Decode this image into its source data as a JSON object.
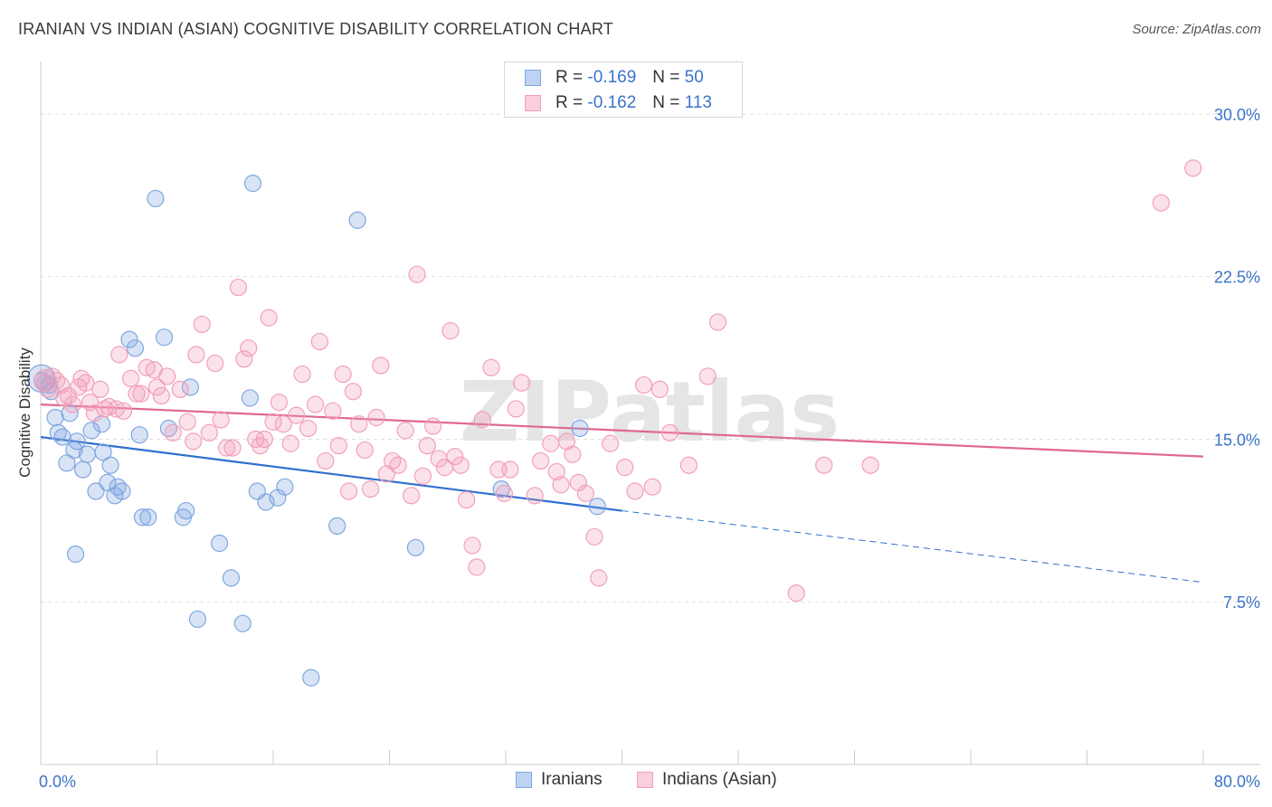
{
  "title": "IRANIAN VS INDIAN (ASIAN) COGNITIVE DISABILITY CORRELATION CHART",
  "source": "Source: ZipAtlas.com",
  "watermark": "ZIPatlas",
  "legend_top": {
    "rows": [
      {
        "r_label": "R =",
        "r_value": "-0.169",
        "n_label": "N =",
        "n_value": "50",
        "color": "#7fa7e0"
      },
      {
        "r_label": "R =",
        "r_value": "-0.162",
        "n_label": "N =",
        "n_value": "113",
        "color": "#f2a0b8"
      }
    ]
  },
  "legend_bottom": [
    {
      "label": "Iranians",
      "color": "#7fa7e0"
    },
    {
      "label": "Indians (Asian)",
      "color": "#f2a0b8"
    }
  ],
  "chart_data": {
    "type": "scatter",
    "title": "IRANIAN VS INDIAN (ASIAN) COGNITIVE DISABILITY CORRELATION CHART",
    "xlabel": "",
    "ylabel": "Cognitive Disability",
    "xlim": [
      0,
      80
    ],
    "ylim": [
      0,
      32
    ],
    "x_tick_labels": [
      "0.0%",
      "80.0%"
    ],
    "y_ticks": [
      7.5,
      15.0,
      22.5,
      30.0
    ],
    "y_tick_labels": [
      "7.5%",
      "15.0%",
      "22.5%",
      "30.0%"
    ],
    "grid": true,
    "legend_position": "top-center",
    "series": [
      {
        "name": "Iranians",
        "color": "#7fa7e0",
        "line_color": "#2e6fce",
        "trend": {
          "x0": 0,
          "y0": 15.1,
          "x1": 40,
          "y1": 11.7,
          "dash_to_x": 80,
          "dash_to_y": 8.4
        },
        "points": [
          [
            0.1,
            17.7
          ],
          [
            0.6,
            17.5
          ],
          [
            0.7,
            17.2
          ],
          [
            1.0,
            16.0
          ],
          [
            1.2,
            15.3
          ],
          [
            1.5,
            15.1
          ],
          [
            1.8,
            13.9
          ],
          [
            2.0,
            16.2
          ],
          [
            2.3,
            14.5
          ],
          [
            2.5,
            14.9
          ],
          [
            2.9,
            13.6
          ],
          [
            3.2,
            14.3
          ],
          [
            3.5,
            15.4
          ],
          [
            3.8,
            12.6
          ],
          [
            4.2,
            15.7
          ],
          [
            4.3,
            14.4
          ],
          [
            4.6,
            13.0
          ],
          [
            4.8,
            13.8
          ],
          [
            5.1,
            12.4
          ],
          [
            5.3,
            12.8
          ],
          [
            5.6,
            12.6
          ],
          [
            6.1,
            19.6
          ],
          [
            6.5,
            19.2
          ],
          [
            6.8,
            15.2
          ],
          [
            7.0,
            11.4
          ],
          [
            7.4,
            11.4
          ],
          [
            7.9,
            26.1
          ],
          [
            8.5,
            19.7
          ],
          [
            8.8,
            15.5
          ],
          [
            9.8,
            11.4
          ],
          [
            10.0,
            11.7
          ],
          [
            10.3,
            17.4
          ],
          [
            10.8,
            6.7
          ],
          [
            12.3,
            10.2
          ],
          [
            13.1,
            8.6
          ],
          [
            13.9,
            6.5
          ],
          [
            14.4,
            16.9
          ],
          [
            14.6,
            26.8
          ],
          [
            14.9,
            12.6
          ],
          [
            15.5,
            12.1
          ],
          [
            16.3,
            12.3
          ],
          [
            16.8,
            12.8
          ],
          [
            18.6,
            4.0
          ],
          [
            20.4,
            11.0
          ],
          [
            21.8,
            25.1
          ],
          [
            25.8,
            10.0
          ],
          [
            31.7,
            12.7
          ],
          [
            37.1,
            15.5
          ],
          [
            2.4,
            9.7
          ],
          [
            38.3,
            11.9
          ]
        ]
      },
      {
        "name": "Indians (Asian)",
        "color": "#f2a0b8",
        "line_color": "#e0688f",
        "trend": {
          "x0": 0,
          "y0": 16.6,
          "x1": 80,
          "y1": 14.2
        },
        "points": [
          [
            0.3,
            17.6
          ],
          [
            0.5,
            17.3
          ],
          [
            0.8,
            17.9
          ],
          [
            1.1,
            17.7
          ],
          [
            1.4,
            17.5
          ],
          [
            1.6,
            16.9
          ],
          [
            1.9,
            17.0
          ],
          [
            2.2,
            16.6
          ],
          [
            2.6,
            17.4
          ],
          [
            2.8,
            17.8
          ],
          [
            3.1,
            17.6
          ],
          [
            3.4,
            16.7
          ],
          [
            3.7,
            16.2
          ],
          [
            4.1,
            17.3
          ],
          [
            4.4,
            16.4
          ],
          [
            4.7,
            16.5
          ],
          [
            5.2,
            16.4
          ],
          [
            5.4,
            18.9
          ],
          [
            5.7,
            16.3
          ],
          [
            6.2,
            17.8
          ],
          [
            6.6,
            17.1
          ],
          [
            6.9,
            17.1
          ],
          [
            7.3,
            18.3
          ],
          [
            7.8,
            18.2
          ],
          [
            8.0,
            17.4
          ],
          [
            8.3,
            17.0
          ],
          [
            8.7,
            17.9
          ],
          [
            9.1,
            15.3
          ],
          [
            9.6,
            17.3
          ],
          [
            10.1,
            15.8
          ],
          [
            10.5,
            14.9
          ],
          [
            10.7,
            18.9
          ],
          [
            11.1,
            20.3
          ],
          [
            11.6,
            15.3
          ],
          [
            12.0,
            18.5
          ],
          [
            12.4,
            15.9
          ],
          [
            12.8,
            14.6
          ],
          [
            13.2,
            14.6
          ],
          [
            13.6,
            22.0
          ],
          [
            14.0,
            18.7
          ],
          [
            14.3,
            19.2
          ],
          [
            14.8,
            15.0
          ],
          [
            15.1,
            14.7
          ],
          [
            15.4,
            15.0
          ],
          [
            15.7,
            20.6
          ],
          [
            16.0,
            15.8
          ],
          [
            16.4,
            16.7
          ],
          [
            16.7,
            15.7
          ],
          [
            17.2,
            14.8
          ],
          [
            17.6,
            16.1
          ],
          [
            18.0,
            18.0
          ],
          [
            18.4,
            15.5
          ],
          [
            18.9,
            16.6
          ],
          [
            19.2,
            19.5
          ],
          [
            19.6,
            14.0
          ],
          [
            20.1,
            16.3
          ],
          [
            20.5,
            14.7
          ],
          [
            20.8,
            18.0
          ],
          [
            21.2,
            12.6
          ],
          [
            21.5,
            17.2
          ],
          [
            21.9,
            15.7
          ],
          [
            22.3,
            14.5
          ],
          [
            22.7,
            12.7
          ],
          [
            23.1,
            16.0
          ],
          [
            23.4,
            18.4
          ],
          [
            23.8,
            13.4
          ],
          [
            24.2,
            14.0
          ],
          [
            24.6,
            13.8
          ],
          [
            25.1,
            15.4
          ],
          [
            25.5,
            12.4
          ],
          [
            25.9,
            22.6
          ],
          [
            26.3,
            13.3
          ],
          [
            26.6,
            14.7
          ],
          [
            27.0,
            15.6
          ],
          [
            27.4,
            14.1
          ],
          [
            27.8,
            13.7
          ],
          [
            28.2,
            20.0
          ],
          [
            28.5,
            14.2
          ],
          [
            28.9,
            13.8
          ],
          [
            29.3,
            12.2
          ],
          [
            29.7,
            10.1
          ],
          [
            30.0,
            9.1
          ],
          [
            30.4,
            15.9
          ],
          [
            31.0,
            18.3
          ],
          [
            31.5,
            13.6
          ],
          [
            31.9,
            12.5
          ],
          [
            32.3,
            13.6
          ],
          [
            32.7,
            16.4
          ],
          [
            33.1,
            17.6
          ],
          [
            34.0,
            12.4
          ],
          [
            34.4,
            14.0
          ],
          [
            35.1,
            14.8
          ],
          [
            35.5,
            13.5
          ],
          [
            35.8,
            12.9
          ],
          [
            36.2,
            14.9
          ],
          [
            36.6,
            14.3
          ],
          [
            37.0,
            13.0
          ],
          [
            37.5,
            12.5
          ],
          [
            38.1,
            10.5
          ],
          [
            38.4,
            8.6
          ],
          [
            39.2,
            14.8
          ],
          [
            40.2,
            13.7
          ],
          [
            40.9,
            12.6
          ],
          [
            41.5,
            17.5
          ],
          [
            42.6,
            17.3
          ],
          [
            43.3,
            15.3
          ],
          [
            44.6,
            13.8
          ],
          [
            45.9,
            17.9
          ],
          [
            46.6,
            20.4
          ],
          [
            52.0,
            7.9
          ],
          [
            53.9,
            13.8
          ],
          [
            57.1,
            13.8
          ],
          [
            77.1,
            25.9
          ],
          [
            79.3,
            27.5
          ],
          [
            42.1,
            12.8
          ]
        ]
      }
    ]
  }
}
